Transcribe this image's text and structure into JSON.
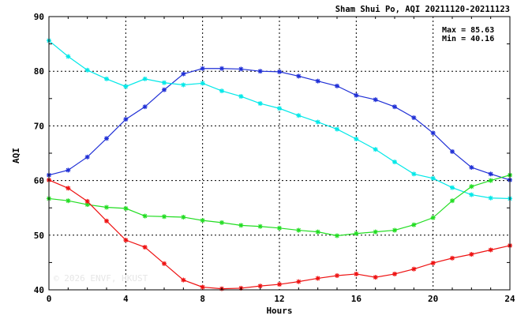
{
  "chart_data": {
    "type": "line",
    "title": "Sham Shui Po, AQI 20211120-20211123",
    "xlabel": "Hours",
    "ylabel": "AQI",
    "xlim": [
      0,
      24
    ],
    "ylim": [
      40,
      90
    ],
    "xticks": [
      0,
      4,
      8,
      12,
      16,
      20,
      24
    ],
    "yticks": [
      40,
      50,
      60,
      70,
      80,
      90
    ],
    "grid": true,
    "annotations": [
      "Max = 85.63",
      "Min = 40.16"
    ],
    "watermark": "© 2026  ENVF, HKUST",
    "x": [
      0,
      1,
      2,
      3,
      4,
      5,
      6,
      7,
      8,
      9,
      10,
      11,
      12,
      13,
      14,
      15,
      16,
      17,
      18,
      19,
      20,
      21,
      22,
      23,
      24
    ],
    "series": [
      {
        "color": "#1f2fd6",
        "values": [
          61.0,
          61.9,
          64.3,
          67.7,
          71.2,
          73.5,
          76.6,
          79.5,
          80.5,
          80.5,
          80.4,
          80.0,
          79.9,
          79.1,
          78.2,
          77.3,
          75.6,
          74.8,
          73.5,
          71.5,
          68.7,
          65.3,
          62.4,
          61.2,
          60.1
        ]
      },
      {
        "color": "#00e8e8",
        "values": [
          85.6,
          82.7,
          80.2,
          78.6,
          77.2,
          78.6,
          77.9,
          77.5,
          77.8,
          76.4,
          75.4,
          74.1,
          73.2,
          71.9,
          70.7,
          69.4,
          67.6,
          65.7,
          63.4,
          61.2,
          60.4,
          58.7,
          57.4,
          56.8,
          56.7
        ]
      },
      {
        "color": "#22dd22",
        "values": [
          56.7,
          56.3,
          55.6,
          55.1,
          54.9,
          53.5,
          53.4,
          53.3,
          52.7,
          52.3,
          51.8,
          51.6,
          51.3,
          50.9,
          50.6,
          49.9,
          50.3,
          50.6,
          50.9,
          51.9,
          53.2,
          56.3,
          58.9,
          60.0,
          61.0
        ]
      },
      {
        "color": "#ee1111",
        "values": [
          60.1,
          58.6,
          56.2,
          52.6,
          49.1,
          47.8,
          44.8,
          41.8,
          40.5,
          40.2,
          40.3,
          40.7,
          41.0,
          41.5,
          42.1,
          42.6,
          42.9,
          42.3,
          42.9,
          43.8,
          44.9,
          45.8,
          46.5,
          47.3,
          48.1
        ]
      }
    ]
  }
}
